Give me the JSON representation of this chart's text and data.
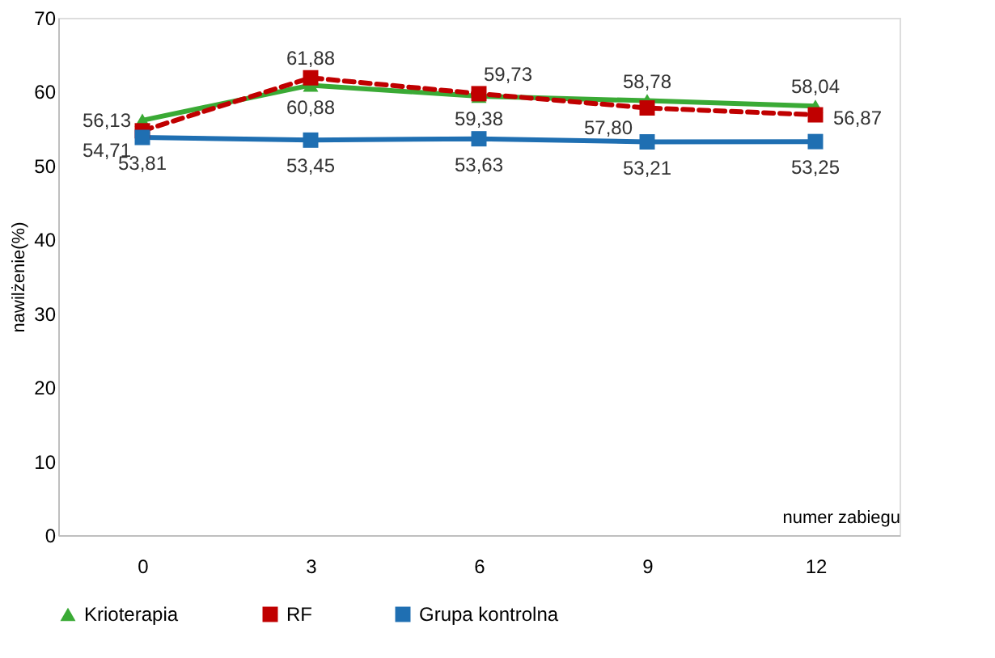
{
  "chart_data": {
    "type": "line",
    "ylabel": "nawilżenie(%)",
    "xlabel": "numer zabiegu",
    "categories": [
      "0",
      "3",
      "6",
      "9",
      "12"
    ],
    "series": [
      {
        "name": "Krioterapia",
        "color": "#3aaa35",
        "marker": "triangle",
        "line_style": "solid",
        "values": [
          56.13,
          60.88,
          59.38,
          58.78,
          58.04
        ],
        "value_labels": [
          "56,13",
          "60,88",
          "59,38",
          "58,78",
          "58,04"
        ]
      },
      {
        "name": "RF",
        "color": "#c00000",
        "marker": "square",
        "line_style": "dashed",
        "values": [
          54.71,
          61.88,
          59.73,
          57.8,
          56.87
        ],
        "value_labels": [
          "54,71",
          "61,88",
          "59,73",
          "57,80",
          "56,87"
        ]
      },
      {
        "name": "Grupa kontrolna",
        "color": "#1f6fb2",
        "marker": "square",
        "line_style": "solid",
        "values": [
          53.81,
          53.45,
          53.63,
          53.21,
          53.25
        ],
        "value_labels": [
          "53,81",
          "53,45",
          "53,63",
          "53,21",
          "53,25"
        ]
      }
    ],
    "ylim": [
      0,
      70
    ],
    "yticks": [
      0,
      10,
      20,
      30,
      40,
      50,
      60,
      70
    ],
    "grid": false,
    "legend": "bottom"
  }
}
